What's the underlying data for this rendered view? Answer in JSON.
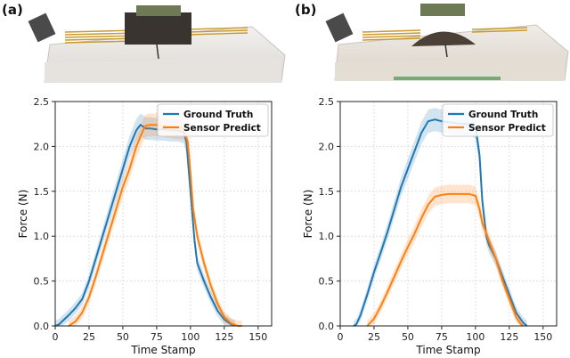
{
  "panels": [
    {
      "label": "(a)"
    },
    {
      "label": "(b)"
    }
  ],
  "chart_data": [
    {
      "type": "line",
      "xlabel": "Time Stamp",
      "ylabel": "Force (N)",
      "xlim": [
        0,
        160
      ],
      "ylim": [
        0,
        2.5
      ],
      "xticks": [
        0,
        25,
        50,
        75,
        100,
        125,
        150
      ],
      "yticks": [
        0.0,
        0.5,
        1.0,
        1.5,
        2.0,
        2.5
      ],
      "grid": true,
      "legend": "top-right",
      "series": [
        {
          "name": "Ground Truth",
          "color": "#1f77b4",
          "x": [
            0,
            3,
            5,
            10,
            15,
            20,
            25,
            30,
            35,
            40,
            45,
            50,
            55,
            60,
            63,
            65,
            67,
            70,
            75,
            80,
            85,
            90,
            95,
            97,
            100,
            103,
            105,
            110,
            115,
            120,
            125,
            130,
            133
          ],
          "y": [
            0.0,
            0.02,
            0.05,
            0.12,
            0.2,
            0.3,
            0.5,
            0.75,
            1.0,
            1.25,
            1.5,
            1.75,
            2.0,
            2.18,
            2.24,
            2.22,
            2.2,
            2.2,
            2.19,
            2.19,
            2.18,
            2.18,
            2.16,
            2.05,
            1.5,
            0.95,
            0.7,
            0.5,
            0.32,
            0.17,
            0.07,
            0.02,
            0.0
          ]
        },
        {
          "name": "Sensor Predict",
          "color": "#ff7f0e",
          "x": [
            10,
            15,
            20,
            25,
            30,
            35,
            40,
            45,
            50,
            55,
            60,
            65,
            67,
            70,
            75,
            80,
            85,
            90,
            95,
            98,
            100,
            102,
            105,
            110,
            115,
            120,
            125,
            130,
            135,
            138
          ],
          "y": [
            0.0,
            0.05,
            0.15,
            0.32,
            0.55,
            0.8,
            1.05,
            1.3,
            1.55,
            1.75,
            2.0,
            2.18,
            2.23,
            2.24,
            2.24,
            2.23,
            2.22,
            2.21,
            2.2,
            2.05,
            1.7,
            1.3,
            1.0,
            0.7,
            0.45,
            0.25,
            0.1,
            0.03,
            0.0,
            0.0
          ]
        }
      ]
    },
    {
      "type": "line",
      "xlabel": "Time Stamp",
      "ylabel": "Force (N)",
      "xlim": [
        0,
        160
      ],
      "ylim": [
        0,
        2.5
      ],
      "xticks": [
        0,
        25,
        50,
        75,
        100,
        125,
        150
      ],
      "yticks": [
        0.0,
        0.5,
        1.0,
        1.5,
        2.0,
        2.5
      ],
      "grid": true,
      "legend": "top-right",
      "series": [
        {
          "name": "Ground Truth",
          "color": "#1f77b4",
          "x": [
            10,
            12,
            15,
            20,
            25,
            30,
            35,
            40,
            45,
            50,
            55,
            60,
            65,
            70,
            75,
            80,
            85,
            90,
            95,
            100,
            103,
            105,
            108,
            110,
            115,
            120,
            125,
            130,
            135,
            138
          ],
          "y": [
            0.0,
            0.02,
            0.12,
            0.35,
            0.6,
            0.82,
            1.05,
            1.3,
            1.55,
            1.75,
            1.95,
            2.15,
            2.28,
            2.3,
            2.28,
            2.27,
            2.26,
            2.25,
            2.25,
            2.22,
            1.9,
            1.4,
            1.0,
            0.9,
            0.75,
            0.55,
            0.35,
            0.15,
            0.04,
            0.0
          ]
        },
        {
          "name": "Sensor Predict",
          "color": "#ff7f0e",
          "x": [
            20,
            25,
            30,
            35,
            40,
            45,
            50,
            55,
            60,
            65,
            70,
            75,
            80,
            90,
            95,
            100,
            103,
            105,
            110,
            115,
            120,
            125,
            130,
            133,
            135
          ],
          "y": [
            0.0,
            0.08,
            0.22,
            0.38,
            0.55,
            0.72,
            0.88,
            1.03,
            1.2,
            1.35,
            1.44,
            1.46,
            1.47,
            1.47,
            1.47,
            1.45,
            1.3,
            1.15,
            0.95,
            0.75,
            0.5,
            0.3,
            0.1,
            0.03,
            0.0
          ]
        }
      ]
    }
  ]
}
